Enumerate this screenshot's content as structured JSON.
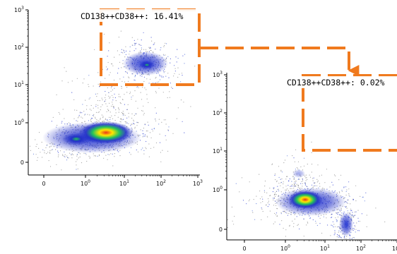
{
  "colors": {
    "gate": "#F07A1E",
    "axis": "#000000",
    "density_low": "#7a7a7a",
    "density_mid": "#2230c8",
    "density_high": "#23c35a",
    "density_peak": "#ffe500",
    "density_max": "#e8361a"
  },
  "chart_data": [
    {
      "type": "scatter",
      "id": "left-plot",
      "xscale": "biexponential",
      "yscale": "biexponential",
      "x_ticks": [
        "0",
        "10^0",
        "10^1",
        "10^2",
        "10^3"
      ],
      "y_ticks": [
        "0",
        "10^0",
        "10^1",
        "10^2",
        "10^3"
      ],
      "gate": {
        "name": "CD138++CD38++",
        "percent": "16.41%",
        "label": "CD138++CD38++: 16.41%",
        "x_range": [
          1.5,
          60
        ],
        "y_range": [
          8,
          1000
        ]
      },
      "populations": [
        {
          "name": "main-cluster",
          "x_center": 3.2,
          "y_center": 0.55,
          "density": "high"
        },
        {
          "name": "gated-cluster",
          "x_center": 12,
          "y_center": 45,
          "density": "medium"
        }
      ]
    },
    {
      "type": "scatter",
      "id": "right-plot",
      "xscale": "biexponential",
      "yscale": "biexponential",
      "x_ticks": [
        "0",
        "10^0",
        "10^1",
        "10^2",
        "10^3"
      ],
      "y_ticks": [
        "0",
        "10^0",
        "10^1",
        "10^2",
        "10^3"
      ],
      "gate": {
        "name": "CD138++CD38++",
        "percent": "0.02%",
        "label": "CD138++CD38++: 0.02%",
        "x_range": [
          3,
          1000
        ],
        "y_range": [
          10,
          1000
        ]
      },
      "populations": [
        {
          "name": "main-cluster",
          "x_center": 3,
          "y_center": 0.5,
          "density": "high"
        },
        {
          "name": "tail-cluster",
          "x_center": 60,
          "y_center": 0,
          "density": "medium"
        }
      ]
    }
  ]
}
